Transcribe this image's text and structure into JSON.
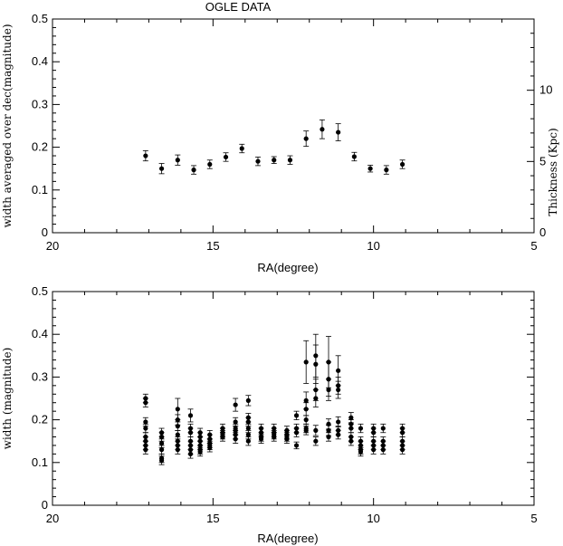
{
  "chart_data": [
    {
      "type": "scatter",
      "title": "OGLE DATA",
      "xlabel": "RA(degree)",
      "ylabel": "width averaged over dec(magnitude)",
      "y2label": "Thickness (Kpc)",
      "xlim": [
        20,
        5
      ],
      "ylim": [
        0,
        0.5
      ],
      "y2lim": [
        0,
        15
      ],
      "xticks": [
        "20",
        "15",
        "10",
        "5"
      ],
      "yticks": [
        "0",
        "0.1",
        "0.2",
        "0.3",
        "0.4",
        "0.5"
      ],
      "y2ticks": [
        "0",
        "5",
        "10"
      ],
      "x_reversed": true,
      "grid": false,
      "points": [
        {
          "x": 17.1,
          "y": 0.18,
          "err": 0.012
        },
        {
          "x": 16.6,
          "y": 0.15,
          "err": 0.012
        },
        {
          "x": 16.1,
          "y": 0.17,
          "err": 0.012
        },
        {
          "x": 15.6,
          "y": 0.147,
          "err": 0.01
        },
        {
          "x": 15.1,
          "y": 0.16,
          "err": 0.01
        },
        {
          "x": 14.6,
          "y": 0.177,
          "err": 0.01
        },
        {
          "x": 14.1,
          "y": 0.197,
          "err": 0.01
        },
        {
          "x": 13.6,
          "y": 0.167,
          "err": 0.01
        },
        {
          "x": 13.1,
          "y": 0.17,
          "err": 0.008
        },
        {
          "x": 12.6,
          "y": 0.17,
          "err": 0.01
        },
        {
          "x": 12.1,
          "y": 0.22,
          "err": 0.018
        },
        {
          "x": 11.6,
          "y": 0.242,
          "err": 0.022
        },
        {
          "x": 11.1,
          "y": 0.235,
          "err": 0.02
        },
        {
          "x": 10.6,
          "y": 0.178,
          "err": 0.01
        },
        {
          "x": 10.1,
          "y": 0.15,
          "err": 0.008
        },
        {
          "x": 9.6,
          "y": 0.147,
          "err": 0.01
        },
        {
          "x": 9.1,
          "y": 0.16,
          "err": 0.01
        }
      ]
    },
    {
      "type": "scatter",
      "title": "",
      "xlabel": "RA(degree)",
      "ylabel": "width (magnitude)",
      "xlim": [
        20,
        5
      ],
      "ylim": [
        0,
        0.5
      ],
      "xticks": [
        "20",
        "15",
        "10",
        "5"
      ],
      "yticks": [
        "0",
        "0.1",
        "0.2",
        "0.3",
        "0.4",
        "0.5"
      ],
      "x_reversed": true,
      "grid": false,
      "columns": [
        {
          "x": 17.1,
          "y": [
            0.25,
            0.24,
            0.195,
            0.18,
            0.16,
            0.15,
            0.14,
            0.13
          ],
          "err": [
            0.01,
            0.01,
            0.01,
            0.01,
            0.01,
            0.01,
            0.01,
            0.01
          ]
        },
        {
          "x": 16.6,
          "y": [
            0.17,
            0.16,
            0.145,
            0.13,
            0.11,
            0.105
          ],
          "err": [
            0.01,
            0.01,
            0.01,
            0.01,
            0.01,
            0.01
          ]
        },
        {
          "x": 16.1,
          "y": [
            0.225,
            0.2,
            0.185,
            0.165,
            0.15,
            0.14,
            0.13
          ],
          "err": [
            0.025,
            0.012,
            0.01,
            0.01,
            0.01,
            0.01,
            0.01
          ]
        },
        {
          "x": 15.7,
          "y": [
            0.21,
            0.18,
            0.17,
            0.15,
            0.14,
            0.13,
            0.12
          ],
          "err": [
            0.015,
            0.01,
            0.01,
            0.01,
            0.01,
            0.01,
            0.01
          ]
        },
        {
          "x": 15.4,
          "y": [
            0.17,
            0.16,
            0.15,
            0.14,
            0.13,
            0.125
          ],
          "err": [
            0.01,
            0.01,
            0.01,
            0.01,
            0.01,
            0.01
          ]
        },
        {
          "x": 15.1,
          "y": [
            0.165,
            0.155,
            0.145,
            0.14,
            0.135
          ],
          "err": [
            0.01,
            0.01,
            0.01,
            0.01,
            0.01
          ]
        },
        {
          "x": 14.7,
          "y": [
            0.18,
            0.17,
            0.165,
            0.16
          ],
          "err": [
            0.01,
            0.01,
            0.01,
            0.01
          ]
        },
        {
          "x": 14.3,
          "y": [
            0.235,
            0.195,
            0.18,
            0.175,
            0.165,
            0.155
          ],
          "err": [
            0.015,
            0.01,
            0.01,
            0.01,
            0.01,
            0.01
          ]
        },
        {
          "x": 13.9,
          "y": [
            0.245,
            0.205,
            0.195,
            0.18,
            0.165,
            0.15
          ],
          "err": [
            0.012,
            0.01,
            0.01,
            0.01,
            0.01,
            0.01
          ]
        },
        {
          "x": 13.5,
          "y": [
            0.18,
            0.17,
            0.16,
            0.155
          ],
          "err": [
            0.01,
            0.01,
            0.01,
            0.01
          ]
        },
        {
          "x": 13.1,
          "y": [
            0.18,
            0.17,
            0.165,
            0.16
          ],
          "err": [
            0.01,
            0.01,
            0.01,
            0.01
          ]
        },
        {
          "x": 12.7,
          "y": [
            0.175,
            0.165,
            0.16,
            0.155
          ],
          "err": [
            0.01,
            0.01,
            0.01,
            0.01
          ]
        },
        {
          "x": 12.4,
          "y": [
            0.21,
            0.18,
            0.17,
            0.14
          ],
          "err": [
            0.01,
            0.01,
            0.01,
            0.008
          ]
        },
        {
          "x": 12.1,
          "y": [
            0.335,
            0.245,
            0.225,
            0.2,
            0.18,
            0.175
          ],
          "err": [
            0.05,
            0.02,
            0.015,
            0.01,
            0.01,
            0.01
          ]
        },
        {
          "x": 11.8,
          "y": [
            0.35,
            0.33,
            0.27,
            0.25,
            0.175,
            0.15
          ],
          "err": [
            0.05,
            0.045,
            0.025,
            0.02,
            0.012,
            0.01
          ]
        },
        {
          "x": 11.4,
          "y": [
            0.335,
            0.295,
            0.27,
            0.19,
            0.175,
            0.16
          ],
          "err": [
            0.06,
            0.04,
            0.025,
            0.012,
            0.012,
            0.01
          ]
        },
        {
          "x": 11.1,
          "y": [
            0.315,
            0.28,
            0.27,
            0.195,
            0.175,
            0.165
          ],
          "err": [
            0.035,
            0.02,
            0.02,
            0.012,
            0.01,
            0.01
          ]
        },
        {
          "x": 10.7,
          "y": [
            0.205,
            0.19,
            0.18,
            0.16,
            0.15
          ],
          "err": [
            0.012,
            0.01,
            0.01,
            0.01,
            0.01
          ]
        },
        {
          "x": 10.4,
          "y": [
            0.18,
            0.15,
            0.14,
            0.13,
            0.125
          ],
          "err": [
            0.01,
            0.01,
            0.01,
            0.01,
            0.01
          ]
        },
        {
          "x": 10.0,
          "y": [
            0.18,
            0.17,
            0.15,
            0.14,
            0.13
          ],
          "err": [
            0.01,
            0.01,
            0.01,
            0.01,
            0.01
          ]
        },
        {
          "x": 9.7,
          "y": [
            0.18,
            0.15,
            0.14,
            0.13
          ],
          "err": [
            0.01,
            0.01,
            0.01,
            0.01
          ]
        },
        {
          "x": 9.1,
          "y": [
            0.18,
            0.17,
            0.15,
            0.14,
            0.13
          ],
          "err": [
            0.01,
            0.01,
            0.01,
            0.01,
            0.01
          ]
        }
      ]
    }
  ]
}
